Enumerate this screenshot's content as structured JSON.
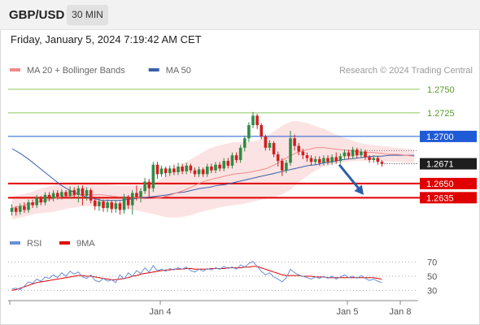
{
  "header": {
    "pair": "GBP/USD",
    "timeframe": "30 MIN"
  },
  "datetime": "Friday, January 5, 2024 7:19:42 AM CET",
  "copyright": "Research © 2024 Trading Central",
  "colors": {
    "up_candle": "#2e8b45",
    "down_candle": "#d11f1f",
    "bollinger_fill": "#fbe3e3",
    "ma20": "#f08a8a",
    "ma50": "#3a5faa",
    "resistance_green": "#8dc85a",
    "pivot_blue": "#1f5bd6",
    "support_red": "#e00000",
    "arrow": "#2a5ea8",
    "rsi": "#6a8fd6",
    "rsi_ma": "#e00000"
  },
  "chart_data": [
    {
      "type": "candlestick",
      "title": "",
      "legend": [
        {
          "name": "MA 20 + Bollinger Bands",
          "color": "#f08a8a"
        },
        {
          "name": "MA 50",
          "color": "#3a5faa"
        }
      ],
      "legend_placement": "top-left",
      "y_range": [
        1.2612,
        1.2762
      ],
      "x_range": [
        0,
        100
      ],
      "x_ticks": [
        {
          "label": "Jan 4",
          "x": 37
        },
        {
          "label": "Jan 5",
          "x": 83
        },
        {
          "label": "Jan 8",
          "x": 96
        }
      ],
      "levels": [
        {
          "label": "1.2750",
          "value": 1.275,
          "kind": "resistance"
        },
        {
          "label": "1.2725",
          "value": 1.2725,
          "kind": "resistance"
        },
        {
          "label": "1.2700",
          "value": 1.27,
          "kind": "pivot"
        },
        {
          "label": "1.2650",
          "value": 1.265,
          "kind": "support"
        },
        {
          "label": "1.2635",
          "value": 1.2635,
          "kind": "support"
        }
      ],
      "last_price": {
        "label": "1.2671",
        "value": 1.2671
      },
      "forecast_arrow": {
        "from": [
          81,
          1.267
        ],
        "to": [
          87,
          1.2638
        ]
      },
      "candles": [
        [
          1.262,
          1.2624,
          1.2616,
          1.2628
        ],
        [
          1.2624,
          1.262,
          1.2616,
          1.2626
        ],
        [
          1.262,
          1.2626,
          1.2617,
          1.2629
        ],
        [
          1.2626,
          1.2622,
          1.2619,
          1.263
        ],
        [
          1.2622,
          1.263,
          1.2619,
          1.2633
        ],
        [
          1.263,
          1.2627,
          1.2624,
          1.2633
        ],
        [
          1.2627,
          1.2635,
          1.2624,
          1.2638
        ],
        [
          1.2635,
          1.263,
          1.2627,
          1.2637
        ],
        [
          1.263,
          1.2638,
          1.2627,
          1.2641
        ],
        [
          1.2638,
          1.2634,
          1.2631,
          1.2641
        ],
        [
          1.2634,
          1.264,
          1.2631,
          1.2643
        ],
        [
          1.264,
          1.2636,
          1.2633,
          1.2643
        ],
        [
          1.2636,
          1.2641,
          1.2633,
          1.2644
        ],
        [
          1.2641,
          1.2637,
          1.2634,
          1.2643
        ],
        [
          1.2637,
          1.2643,
          1.2634,
          1.2647
        ],
        [
          1.2643,
          1.2638,
          1.2635,
          1.2646
        ],
        [
          1.2638,
          1.2645,
          1.263,
          1.2648
        ],
        [
          1.2645,
          1.2637,
          1.2627,
          1.2648
        ],
        [
          1.2637,
          1.2643,
          1.2632,
          1.2646
        ],
        [
          1.2643,
          1.2632,
          1.2629,
          1.2645
        ],
        [
          1.2632,
          1.2626,
          1.2622,
          1.2634
        ],
        [
          1.2626,
          1.2631,
          1.2621,
          1.2634
        ],
        [
          1.2631,
          1.2624,
          1.262,
          1.2633
        ],
        [
          1.2624,
          1.263,
          1.262,
          1.2633
        ],
        [
          1.263,
          1.2623,
          1.2619,
          1.2632
        ],
        [
          1.2623,
          1.2629,
          1.2619,
          1.2632
        ],
        [
          1.2629,
          1.2622,
          1.2617,
          1.2631
        ],
        [
          1.2622,
          1.2636,
          1.2618,
          1.2639
        ],
        [
          1.2636,
          1.2627,
          1.2623,
          1.2638
        ],
        [
          1.2627,
          1.264,
          1.2617,
          1.2643
        ],
        [
          1.264,
          1.2636,
          1.2632,
          1.2648
        ],
        [
          1.2636,
          1.2642,
          1.263,
          1.2645
        ],
        [
          1.2642,
          1.2652,
          1.2639,
          1.2656
        ],
        [
          1.2652,
          1.2645,
          1.2636,
          1.2655
        ],
        [
          1.2645,
          1.267,
          1.2641,
          1.2673
        ],
        [
          1.267,
          1.266,
          1.2655,
          1.2673
        ],
        [
          1.266,
          1.2666,
          1.2657,
          1.2669
        ],
        [
          1.2666,
          1.2661,
          1.2657,
          1.2668
        ],
        [
          1.2661,
          1.2666,
          1.2658,
          1.2669
        ],
        [
          1.2666,
          1.2662,
          1.2659,
          1.267
        ],
        [
          1.2662,
          1.2668,
          1.2659,
          1.2672
        ],
        [
          1.2668,
          1.2663,
          1.266,
          1.2671
        ],
        [
          1.2663,
          1.2669,
          1.266,
          1.2672
        ],
        [
          1.2669,
          1.2664,
          1.2661,
          1.2671
        ],
        [
          1.2664,
          1.266,
          1.2657,
          1.2667
        ],
        [
          1.266,
          1.2665,
          1.2657,
          1.2668
        ],
        [
          1.2665,
          1.266,
          1.2657,
          1.2667
        ],
        [
          1.266,
          1.2668,
          1.2657,
          1.2671
        ],
        [
          1.2668,
          1.2664,
          1.2661,
          1.2671
        ],
        [
          1.2664,
          1.267,
          1.2661,
          1.2673
        ],
        [
          1.267,
          1.2666,
          1.2663,
          1.2673
        ],
        [
          1.2666,
          1.2674,
          1.2663,
          1.2677
        ],
        [
          1.2674,
          1.2669,
          1.2666,
          1.2677
        ],
        [
          1.2669,
          1.268,
          1.2666,
          1.2683
        ],
        [
          1.268,
          1.2675,
          1.2672,
          1.2683
        ],
        [
          1.2675,
          1.2688,
          1.2672,
          1.2691
        ],
        [
          1.2688,
          1.2698,
          1.2684,
          1.2701
        ],
        [
          1.2698,
          1.2712,
          1.2694,
          1.2715
        ],
        [
          1.2712,
          1.2722,
          1.2709,
          1.2726
        ],
        [
          1.2722,
          1.2712,
          1.2708,
          1.2724
        ],
        [
          1.2712,
          1.27,
          1.2697,
          1.2714
        ],
        [
          1.27,
          1.2688,
          1.2685,
          1.2702
        ],
        [
          1.2688,
          1.2693,
          1.2685,
          1.2696
        ],
        [
          1.2693,
          1.2681,
          1.2678,
          1.2695
        ],
        [
          1.2681,
          1.2674,
          1.2668,
          1.2684
        ],
        [
          1.2674,
          1.2664,
          1.2658,
          1.2677
        ],
        [
          1.2664,
          1.2672,
          1.2661,
          1.2675
        ],
        [
          1.2672,
          1.2698,
          1.2669,
          1.2706
        ],
        [
          1.2698,
          1.269,
          1.2685,
          1.2702
        ],
        [
          1.269,
          1.2684,
          1.268,
          1.2693
        ],
        [
          1.2684,
          1.268,
          1.2676,
          1.2687
        ],
        [
          1.268,
          1.2677,
          1.2673,
          1.2683
        ],
        [
          1.2677,
          1.2673,
          1.2669,
          1.268
        ],
        [
          1.2673,
          1.2676,
          1.267,
          1.2679
        ],
        [
          1.2676,
          1.2672,
          1.2669,
          1.2679
        ],
        [
          1.2672,
          1.2677,
          1.2669,
          1.268
        ],
        [
          1.2677,
          1.2673,
          1.267,
          1.268
        ],
        [
          1.2673,
          1.2678,
          1.267,
          1.2681
        ],
        [
          1.2678,
          1.2674,
          1.2671,
          1.2683
        ],
        [
          1.2674,
          1.2679,
          1.2671,
          1.2682
        ],
        [
          1.2679,
          1.2683,
          1.2676,
          1.2686
        ],
        [
          1.2683,
          1.2679,
          1.2676,
          1.2686
        ],
        [
          1.2679,
          1.2686,
          1.2676,
          1.2689
        ],
        [
          1.2686,
          1.268,
          1.2677,
          1.2688
        ],
        [
          1.268,
          1.2684,
          1.2677,
          1.2687
        ],
        [
          1.2684,
          1.2678,
          1.2675,
          1.2686
        ],
        [
          1.2678,
          1.2675,
          1.2672,
          1.268
        ],
        [
          1.2675,
          1.2677,
          1.2672,
          1.268
        ],
        [
          1.2677,
          1.2673,
          1.267,
          1.2679
        ],
        [
          1.2673,
          1.2671,
          1.2668,
          1.2675
        ]
      ],
      "ma20": [
        1.2624,
        1.2626,
        1.2628,
        1.263,
        1.2632,
        1.2634,
        1.2636,
        1.2637,
        1.2638,
        1.2638,
        1.2638,
        1.2638,
        1.2637,
        1.2636,
        1.2636,
        1.2635,
        1.2634,
        1.2634,
        1.2635,
        1.2637,
        1.264,
        1.2643,
        1.2647,
        1.2651,
        1.2654,
        1.2656,
        1.2658,
        1.266,
        1.2661,
        1.2662,
        1.2664,
        1.2666,
        1.267,
        1.2675,
        1.268,
        1.2684,
        1.2686,
        1.2688,
        1.2688,
        1.2687,
        1.2686,
        1.2685,
        1.2684,
        1.2683,
        1.2683,
        1.2682,
        1.2681,
        1.2681,
        1.268,
        1.2679
      ],
      "ma50": [
        1.2687,
        1.2682,
        1.2676,
        1.2669,
        1.2662,
        1.2655,
        1.2648,
        1.2643,
        1.2639,
        1.2636,
        1.2634,
        1.2632,
        1.2632,
        1.2632,
        1.2633,
        1.2634,
        1.2635,
        1.2636,
        1.2637,
        1.2638,
        1.264,
        1.2641,
        1.2643,
        1.2645,
        1.2646,
        1.2648,
        1.2649,
        1.2651,
        1.2653,
        1.2655,
        1.2657,
        1.2659,
        1.2661,
        1.2663,
        1.2665,
        1.2667,
        1.2669,
        1.267,
        1.2672,
        1.2673,
        1.2675,
        1.2676,
        1.2677,
        1.2678,
        1.2679,
        1.2679,
        1.268,
        1.268,
        1.268,
        1.268
      ],
      "bb_upper": [
        1.2636,
        1.2638,
        1.264,
        1.2643,
        1.2646,
        1.2648,
        1.265,
        1.265,
        1.2651,
        1.2651,
        1.265,
        1.265,
        1.2649,
        1.2648,
        1.2648,
        1.2648,
        1.2648,
        1.265,
        1.2654,
        1.266,
        1.2666,
        1.2672,
        1.2677,
        1.2682,
        1.2687,
        1.269,
        1.2692,
        1.2694,
        1.2694,
        1.2694,
        1.2696,
        1.27,
        1.2706,
        1.2712,
        1.2716,
        1.2716,
        1.2714,
        1.2711,
        1.2708,
        1.2704,
        1.27,
        1.2697,
        1.2694,
        1.2692,
        1.2691,
        1.269,
        1.2689,
        1.2688,
        1.2687,
        1.2686
      ],
      "bb_lower": [
        1.2612,
        1.2614,
        1.2616,
        1.2618,
        1.2619,
        1.262,
        1.2622,
        1.2624,
        1.2625,
        1.2626,
        1.2626,
        1.2626,
        1.2625,
        1.2624,
        1.2623,
        1.2622,
        1.262,
        1.2618,
        1.2616,
        1.2614,
        1.2614,
        1.2615,
        1.2617,
        1.262,
        1.2622,
        1.2624,
        1.2626,
        1.2627,
        1.2628,
        1.263,
        1.2632,
        1.2634,
        1.2636,
        1.2639,
        1.2644,
        1.2652,
        1.2658,
        1.2664,
        1.2668,
        1.267,
        1.2672,
        1.2673,
        1.2674,
        1.2674,
        1.2675,
        1.2674,
        1.2673,
        1.2673,
        1.2672,
        1.2672
      ]
    },
    {
      "type": "line",
      "title": "",
      "legend": [
        {
          "name": "RSI",
          "color": "#6a8fd6"
        },
        {
          "name": "9MA",
          "color": "#e00000"
        }
      ],
      "y_range": [
        20,
        80
      ],
      "y_ticks": [
        {
          "label": "70",
          "value": 70
        },
        {
          "label": "50",
          "value": 50
        },
        {
          "label": "30",
          "value": 30
        }
      ],
      "rsi": [
        32,
        33,
        31,
        36,
        42,
        40,
        46,
        43,
        49,
        47,
        52,
        48,
        55,
        50,
        57,
        53,
        56,
        49,
        47,
        52,
        44,
        42,
        47,
        43,
        45,
        41,
        52,
        46,
        55,
        50,
        58,
        54,
        62,
        56,
        65,
        58,
        60,
        57,
        61,
        59,
        62,
        60,
        63,
        58,
        56,
        60,
        57,
        61,
        59,
        62,
        60,
        64,
        61,
        63,
        60,
        66,
        63,
        68,
        71,
        64,
        57,
        52,
        55,
        49,
        46,
        42,
        48,
        60,
        55,
        52,
        50,
        48,
        46,
        49,
        47,
        50,
        47,
        50,
        46,
        49,
        52,
        48,
        50,
        47,
        51,
        47,
        44,
        46,
        43,
        41
      ],
      "ma9": [
        30,
        31,
        33,
        35,
        37,
        39,
        41,
        42,
        43,
        44,
        45,
        46,
        47,
        48,
        49,
        50,
        51,
        51,
        50,
        50,
        49,
        48,
        47,
        46,
        45,
        45,
        46,
        47,
        48,
        50,
        51,
        53,
        54,
        55,
        56,
        57,
        58,
        59,
        59,
        60,
        60,
        60,
        61,
        61,
        60,
        60,
        60,
        60,
        61,
        61,
        61,
        61,
        62,
        62,
        62,
        62,
        63,
        63,
        64,
        64,
        62,
        60,
        58,
        56,
        54,
        52,
        51,
        51,
        51,
        51,
        50,
        50,
        50,
        49,
        49,
        49,
        48,
        48,
        48,
        48,
        48,
        48,
        48,
        48,
        48,
        48,
        48,
        48,
        47,
        46
      ]
    }
  ]
}
